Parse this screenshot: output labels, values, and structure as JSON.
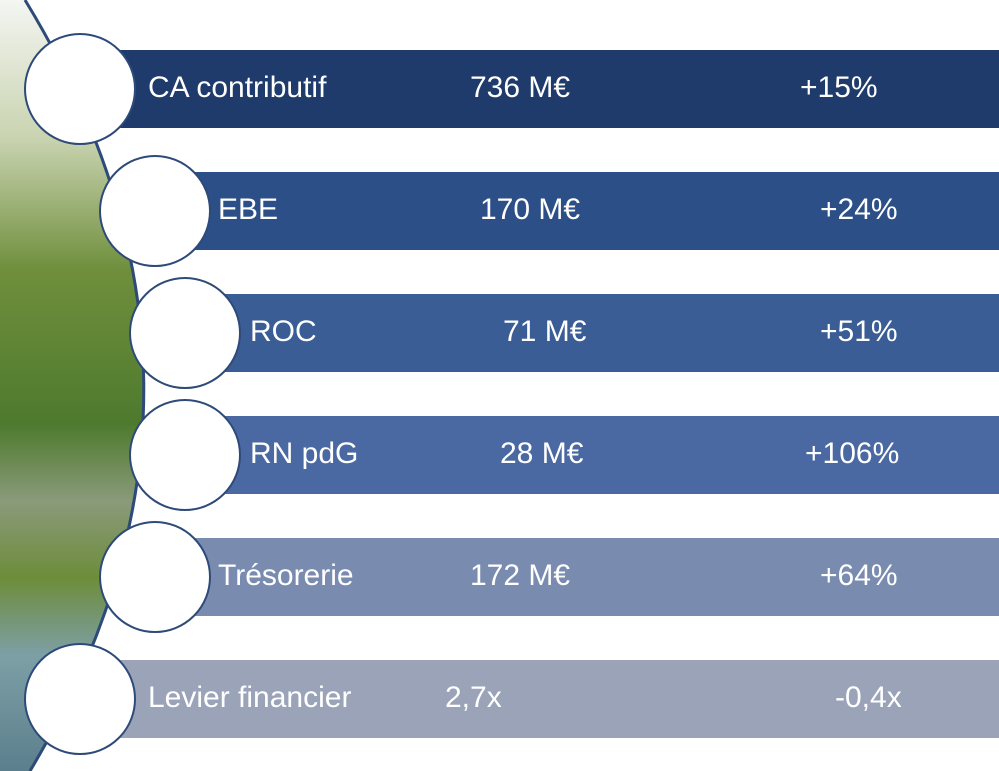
{
  "rows": [
    {
      "label": "CA contributif",
      "value": "736 M€",
      "change": "+15%"
    },
    {
      "label": "EBE",
      "value": "170 M€",
      "change": "+24%"
    },
    {
      "label": "ROC",
      "value": "71 M€",
      "change": "+51%"
    },
    {
      "label": "RN pdG",
      "value": "28 M€",
      "change": "+106%"
    },
    {
      "label": "Trésorerie",
      "value": "172 M€",
      "change": "+64%"
    },
    {
      "label": "Levier financier",
      "value": "2,7x",
      "change": "-0,4x"
    }
  ]
}
